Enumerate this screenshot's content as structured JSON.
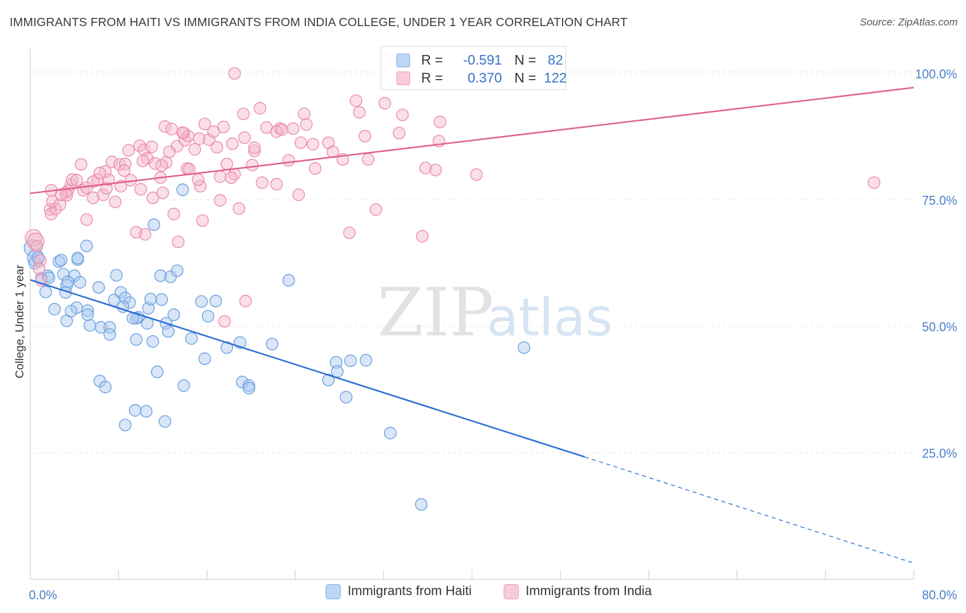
{
  "title": "IMMIGRANTS FROM HAITI VS IMMIGRANTS FROM INDIA COLLEGE, UNDER 1 YEAR CORRELATION CHART",
  "source": "Source: ZipAtlas.com",
  "watermark": {
    "zip": "ZIP",
    "atlas": "atlas"
  },
  "colors": {
    "haiti_fill": "#a8c8f0",
    "haiti_stroke": "#6a9fe0",
    "haiti_line": "#2a6fd0",
    "india_fill": "#f5b8cc",
    "india_stroke": "#ea8aa8",
    "india_line": "#e0608a",
    "axis_label": "#4a7fc8",
    "grid": "#e6e6e6"
  },
  "stats": [
    {
      "r_label": "R =",
      "r_value": "-0.591",
      "n_label": "N =",
      "n_value": "82",
      "color": "#a8c8f0"
    },
    {
      "r_label": "R =",
      "r_value": "0.370",
      "n_label": "N =",
      "n_value": "122",
      "color": "#f5b8cc"
    }
  ],
  "legend": [
    {
      "label": "Immigrants from Haiti"
    },
    {
      "label": "Immigrants from India"
    }
  ],
  "chart_data": {
    "type": "scatter",
    "xlabel": "",
    "ylabel": "College, Under 1 year",
    "xlim": [
      0,
      80
    ],
    "ylim": [
      0,
      105
    ],
    "x_tick_labels": [
      {
        "value": 0,
        "label": "0.0%"
      },
      {
        "value": 80,
        "label": "80.0%"
      }
    ],
    "y_tick_labels": [
      {
        "value": 25,
        "label": "25.0%"
      },
      {
        "value": 50,
        "label": "50.0%"
      },
      {
        "value": 75,
        "label": "75.0%"
      },
      {
        "value": 100,
        "label": "100.0%"
      }
    ],
    "grid": true,
    "legend_position": "bottom",
    "series": [
      {
        "name": "Immigrants from Haiti",
        "trend": {
          "x0": 0,
          "y0": 59.2,
          "x1": 50.2,
          "y1": 24.2,
          "dash_x_end": 80,
          "dash_y_end": 3.2
        },
        "points": [
          [
            0.2,
            65.5
          ],
          [
            0.5,
            63.5
          ],
          [
            0.4,
            62.5
          ],
          [
            0.7,
            63.6
          ],
          [
            1.0,
            59.5
          ],
          [
            1.6,
            60
          ],
          [
            1.4,
            56.8
          ],
          [
            2.6,
            62.8
          ],
          [
            2.8,
            63.1
          ],
          [
            3.0,
            60.3
          ],
          [
            3.3,
            58.1
          ],
          [
            4.0,
            60.0
          ],
          [
            4.3,
            63.2
          ],
          [
            4.3,
            63.5
          ],
          [
            3.4,
            58.8
          ],
          [
            4.5,
            58.7
          ],
          [
            2.2,
            53.4
          ],
          [
            3.2,
            56.7
          ],
          [
            4.2,
            53.7
          ],
          [
            5.1,
            65.9
          ],
          [
            6.2,
            57.7
          ],
          [
            7.8,
            60.1
          ],
          [
            7.6,
            55.2
          ],
          [
            8.2,
            56.7
          ],
          [
            8.6,
            55.6
          ],
          [
            9.0,
            54.7
          ],
          [
            11.8,
            60.0
          ],
          [
            12.7,
            59.8
          ],
          [
            13.3,
            61.0
          ],
          [
            11.9,
            55.3
          ],
          [
            12.3,
            50.6
          ],
          [
            9.8,
            51.8
          ],
          [
            9.6,
            51.6
          ],
          [
            10.6,
            50.6
          ],
          [
            10.7,
            53.6
          ],
          [
            12.5,
            49.0
          ],
          [
            13.8,
            77.0
          ],
          [
            11.2,
            70.1
          ],
          [
            15.5,
            54.9
          ],
          [
            16.8,
            55.0
          ],
          [
            16.1,
            52.0
          ],
          [
            14.6,
            47.6
          ],
          [
            15.8,
            43.6
          ],
          [
            17.8,
            45.8
          ],
          [
            19.0,
            46.8
          ],
          [
            21.9,
            46.5
          ],
          [
            23.4,
            59.1
          ],
          [
            3.3,
            51.1
          ],
          [
            5.2,
            53.1
          ],
          [
            5.4,
            50.2
          ],
          [
            6.4,
            49.8
          ],
          [
            7.2,
            49.8
          ],
          [
            7.2,
            48.4
          ],
          [
            9.6,
            47.4
          ],
          [
            11.1,
            47.0
          ],
          [
            8.4,
            53.9
          ],
          [
            6.3,
            39.2
          ],
          [
            6.8,
            38.0
          ],
          [
            11.5,
            41.0
          ],
          [
            13.9,
            38.3
          ],
          [
            19.2,
            39.0
          ],
          [
            19.8,
            38.3
          ],
          [
            19.8,
            37.8
          ],
          [
            27.0,
            39.4
          ],
          [
            27.7,
            42.9
          ],
          [
            27.8,
            41.1
          ],
          [
            29.0,
            43.2
          ],
          [
            30.4,
            43.3
          ],
          [
            28.6,
            36.0
          ],
          [
            8.6,
            30.5
          ],
          [
            9.5,
            33.4
          ],
          [
            10.5,
            33.2
          ],
          [
            12.2,
            31.2
          ],
          [
            32.6,
            28.9
          ],
          [
            35.4,
            14.8
          ],
          [
            44.7,
            45.8
          ],
          [
            1.7,
            59.6
          ],
          [
            3.7,
            53.0
          ],
          [
            5.2,
            52.3
          ],
          [
            9.3,
            51.6
          ],
          [
            10.9,
            55.4
          ],
          [
            13.0,
            52.3
          ]
        ]
      },
      {
        "name": "Immigrants from India",
        "trend": {
          "x0": 0,
          "y0": 76.3,
          "x1": 80,
          "y1": 97.2
        },
        "points": [
          [
            0.3,
            67.5
          ],
          [
            0.5,
            66.8
          ],
          [
            0.6,
            65.8
          ],
          [
            0.9,
            63.0
          ],
          [
            1.0,
            59.1
          ],
          [
            0.8,
            61.4
          ],
          [
            1.8,
            73.1
          ],
          [
            1.9,
            72.2
          ],
          [
            2.3,
            73.2
          ],
          [
            2.0,
            74.7
          ],
          [
            2.7,
            74.1
          ],
          [
            3.2,
            76.4
          ],
          [
            3.3,
            75.9
          ],
          [
            3.4,
            76.8
          ],
          [
            2.8,
            76.0
          ],
          [
            3.7,
            78.0
          ],
          [
            3.8,
            79.0
          ],
          [
            4.2,
            78.9
          ],
          [
            4.8,
            76.9
          ],
          [
            5.1,
            77.4
          ],
          [
            5.7,
            75.4
          ],
          [
            6.1,
            79.0
          ],
          [
            6.6,
            76.0
          ],
          [
            6.9,
            77.3
          ],
          [
            7.1,
            79.0
          ],
          [
            7.7,
            74.6
          ],
          [
            8.2,
            77.7
          ],
          [
            4.6,
            82.0
          ],
          [
            5.1,
            71.1
          ],
          [
            5.7,
            78.6
          ],
          [
            6.8,
            80.6
          ],
          [
            7.4,
            82.5
          ],
          [
            8.1,
            82.0
          ],
          [
            8.6,
            82.1
          ],
          [
            8.5,
            80.8
          ],
          [
            8.9,
            84.8
          ],
          [
            9.9,
            85.7
          ],
          [
            10.3,
            84.9
          ],
          [
            10.6,
            83.2
          ],
          [
            11.0,
            85.5
          ],
          [
            11.3,
            82.2
          ],
          [
            11.8,
            79.4
          ],
          [
            12.3,
            82.4
          ],
          [
            12.2,
            89.5
          ],
          [
            12.8,
            89.0
          ],
          [
            13.3,
            85.6
          ],
          [
            13.9,
            88.2
          ],
          [
            14.0,
            86.8
          ],
          [
            14.3,
            87.6
          ],
          [
            14.9,
            85.0
          ],
          [
            15.3,
            87.1
          ],
          [
            15.8,
            90.0
          ],
          [
            16.2,
            86.9
          ],
          [
            16.9,
            85.4
          ],
          [
            17.5,
            89.4
          ],
          [
            17.2,
            79.6
          ],
          [
            17.8,
            82.1
          ],
          [
            18.3,
            86.1
          ],
          [
            18.5,
            80.1
          ],
          [
            19.3,
            92.0
          ],
          [
            19.4,
            87.3
          ],
          [
            20.3,
            84.7
          ],
          [
            20.8,
            93.1
          ],
          [
            20.3,
            85.3
          ],
          [
            21.4,
            89.3
          ],
          [
            22.6,
            89.1
          ],
          [
            22.3,
            88.5
          ],
          [
            23.4,
            82.8
          ],
          [
            23.8,
            89.1
          ],
          [
            24.5,
            86.3
          ],
          [
            25.0,
            89.9
          ],
          [
            24.8,
            92.0
          ],
          [
            25.8,
            81.2
          ],
          [
            27.0,
            86.3
          ],
          [
            28.3,
            83.0
          ],
          [
            29.5,
            94.6
          ],
          [
            29.8,
            92.3
          ],
          [
            30.3,
            87.6
          ],
          [
            32.1,
            94.1
          ],
          [
            33.7,
            91.8
          ],
          [
            33.4,
            88.2
          ],
          [
            35.8,
            81.3
          ],
          [
            36.7,
            80.9
          ],
          [
            37.1,
            90.4
          ],
          [
            37.0,
            86.6
          ],
          [
            40.4,
            80.0
          ],
          [
            9.1,
            78.9
          ],
          [
            10.0,
            77.1
          ],
          [
            12.0,
            76.4
          ],
          [
            13.0,
            72.2
          ],
          [
            13.4,
            66.7
          ],
          [
            15.4,
            77.7
          ],
          [
            15.6,
            70.9
          ],
          [
            17.2,
            74.9
          ],
          [
            18.9,
            73.3
          ],
          [
            21.0,
            78.4
          ],
          [
            22.3,
            78.1
          ],
          [
            24.3,
            76.0
          ],
          [
            28.9,
            68.5
          ],
          [
            31.3,
            73.1
          ],
          [
            35.5,
            67.8
          ],
          [
            11.1,
            75.4
          ],
          [
            9.6,
            68.6
          ],
          [
            10.4,
            68.2
          ],
          [
            14.2,
            81.2
          ],
          [
            19.5,
            55.0
          ],
          [
            17.6,
            51.0
          ],
          [
            18.5,
            100.0
          ],
          [
            76.4,
            78.4
          ],
          [
            13.8,
            88.3
          ],
          [
            16.6,
            88.5
          ],
          [
            18.2,
            79.4
          ],
          [
            20.1,
            81.9
          ],
          [
            22.8,
            88.9
          ],
          [
            1.9,
            76.9
          ],
          [
            10.2,
            82.7
          ],
          [
            12.6,
            84.5
          ],
          [
            14.4,
            81.1
          ],
          [
            15.2,
            79.0
          ],
          [
            11.9,
            81.8
          ],
          [
            6.3,
            80.3
          ],
          [
            25.6,
            86.0
          ],
          [
            27.4,
            84.5
          ],
          [
            30.6,
            83.0
          ]
        ]
      }
    ]
  }
}
